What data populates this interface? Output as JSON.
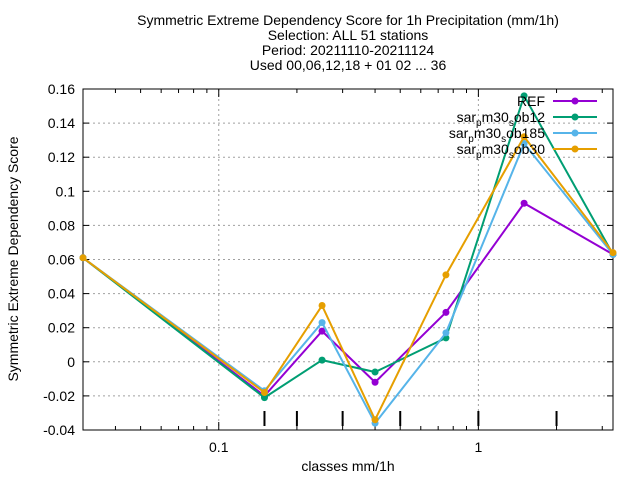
{
  "chart_data": {
    "type": "line",
    "title_lines": [
      "Symmetric Extreme Dependency Score  for 1h Precipitation (mm/1h)",
      "Selection: ALL     51 stations",
      "Period: 20211110-20211124",
      "Used 00,06,12,18 + 01 02 ... 36"
    ],
    "xlabel": "classes mm/1h",
    "ylabel": "Symmetric Extreme Dependency Score",
    "x_scale": "log",
    "xlim": [
      0.03,
      3.3
    ],
    "ylim": [
      -0.04,
      0.16
    ],
    "x_ticks": [
      {
        "value": 0.1,
        "label": "0.1"
      },
      {
        "value": 1,
        "label": "1"
      }
    ],
    "y_ticks": [
      {
        "value": -0.04,
        "label": "-0.04"
      },
      {
        "value": -0.02,
        "label": "-0.02"
      },
      {
        "value": 0,
        "label": "0"
      },
      {
        "value": 0.02,
        "label": "0.02"
      },
      {
        "value": 0.04,
        "label": "0.04"
      },
      {
        "value": 0.06,
        "label": "0.06"
      },
      {
        "value": 0.08,
        "label": "0.08"
      },
      {
        "value": 0.1,
        "label": "0.1"
      },
      {
        "value": 0.12,
        "label": "0.12"
      },
      {
        "value": 0.14,
        "label": "0.14"
      },
      {
        "value": 0.16,
        "label": "0.16"
      }
    ],
    "grid": true,
    "legend_position": "top-right",
    "x": [
      0.03,
      0.15,
      0.25,
      0.4,
      0.75,
      1.5,
      3.3
    ],
    "series": [
      {
        "name": "REF",
        "label_parts": [
          [
            "REF",
            false
          ]
        ],
        "color": "#9400d3",
        "marker": "circle",
        "values": [
          0.061,
          -0.02,
          0.018,
          -0.012,
          0.029,
          0.093,
          0.063
        ]
      },
      {
        "name": "sar_pm30_sob12",
        "label_parts": [
          [
            "sar",
            false
          ],
          [
            "p",
            true
          ],
          [
            "m30",
            false
          ],
          [
            "s",
            true
          ],
          [
            "ob12",
            false
          ]
        ],
        "color": "#009e73",
        "marker": "circle",
        "values": [
          0.061,
          -0.021,
          0.001,
          -0.006,
          0.014,
          0.156,
          0.063
        ]
      },
      {
        "name": "sar_pm30_sob185",
        "label_parts": [
          [
            "sar",
            false
          ],
          [
            "p",
            true
          ],
          [
            "m30",
            false
          ],
          [
            "s",
            true
          ],
          [
            "ob185",
            false
          ]
        ],
        "color": "#56b4e9",
        "marker": "circle",
        "values": [
          0.061,
          -0.017,
          0.023,
          -0.036,
          0.017,
          0.128,
          0.063
        ]
      },
      {
        "name": "sar_pm30_sob30",
        "label_parts": [
          [
            "sar",
            false
          ],
          [
            "p",
            true
          ],
          [
            "m30",
            false
          ],
          [
            "s",
            true
          ],
          [
            "ob30",
            false
          ]
        ],
        "color": "#e69f00",
        "marker": "circle",
        "values": [
          0.061,
          -0.018,
          0.033,
          -0.034,
          0.051,
          0.132,
          0.064
        ]
      }
    ],
    "annotation_ticks_x": [
      0.15,
      0.2,
      0.3,
      0.5,
      1.0,
      2.0
    ]
  }
}
